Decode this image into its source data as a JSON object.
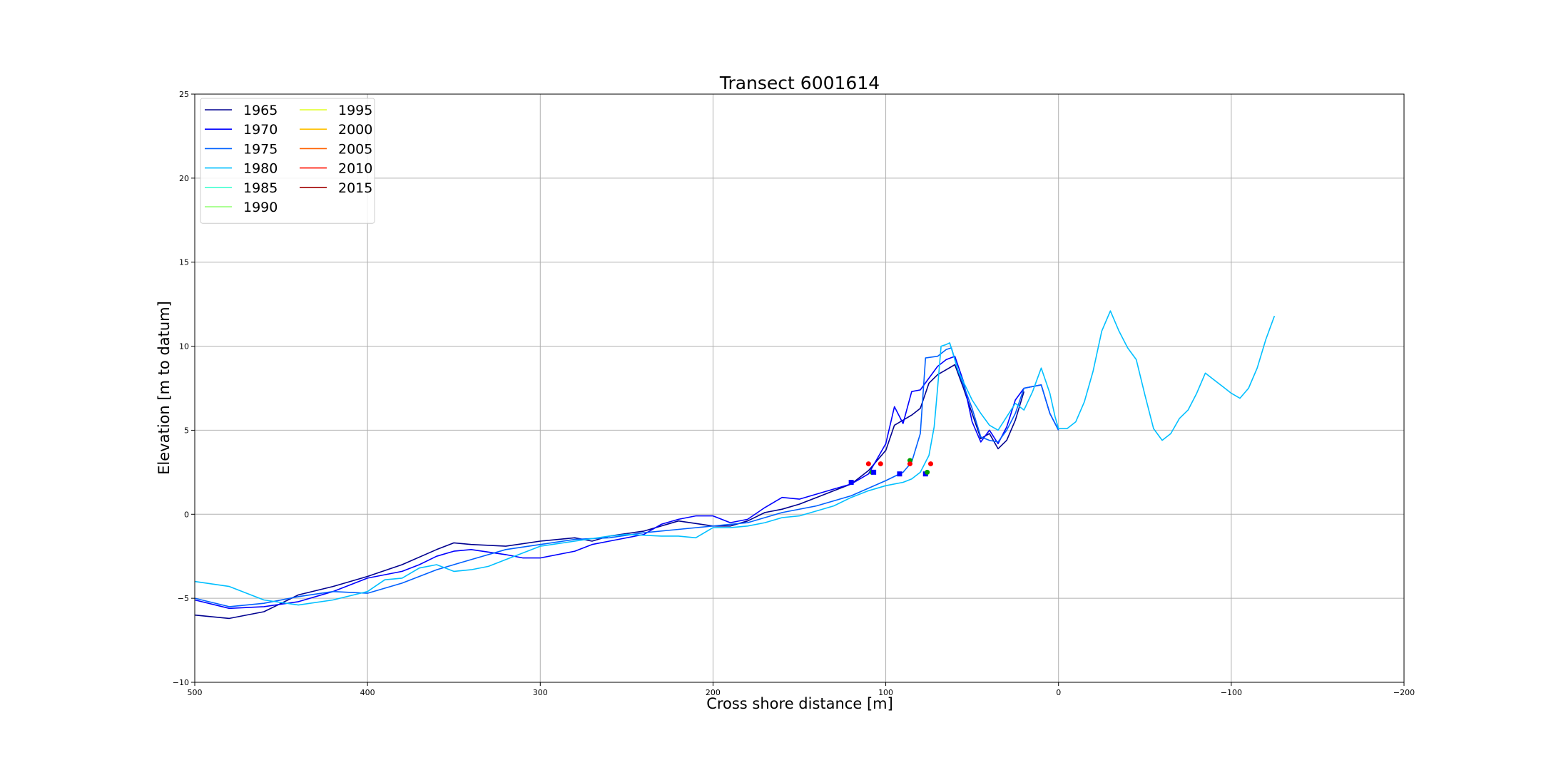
{
  "chart_data": {
    "type": "line",
    "title": "Transect 6001614",
    "xlabel": "Cross shore distance [m]",
    "ylabel": "Elevation [m to datum]",
    "xlim": [
      500,
      -200
    ],
    "ylim": [
      -10,
      25
    ],
    "x_ticks": [
      500,
      400,
      300,
      200,
      100,
      0,
      -100,
      -200
    ],
    "x_tick_labels": [
      "500",
      "400",
      "300",
      "200",
      "100",
      "0",
      "−100",
      "−200"
    ],
    "y_ticks": [
      -10,
      -5,
      0,
      5,
      10,
      15,
      20,
      25
    ],
    "y_tick_labels": [
      "−10",
      "−5",
      "0",
      "5",
      "10",
      "15",
      "20",
      "25"
    ],
    "grid": true,
    "legend_position": "top-left",
    "legend": [
      {
        "label": "1965",
        "color": "#00008f"
      },
      {
        "label": "1970",
        "color": "#0000ff"
      },
      {
        "label": "1975",
        "color": "#0060ff"
      },
      {
        "label": "1980",
        "color": "#00bfff"
      },
      {
        "label": "1985",
        "color": "#40ffd0"
      },
      {
        "label": "1990",
        "color": "#90ff70"
      },
      {
        "label": "1995",
        "color": "#e0ff20"
      },
      {
        "label": "2000",
        "color": "#ffc000"
      },
      {
        "label": "2005",
        "color": "#ff6000"
      },
      {
        "label": "2010",
        "color": "#ff1000"
      },
      {
        "label": "2015",
        "color": "#9f0000"
      }
    ],
    "series": [
      {
        "name": "1965",
        "color": "#00008f",
        "points": [
          [
            500,
            -6.0
          ],
          [
            480,
            -6.2
          ],
          [
            460,
            -5.8
          ],
          [
            440,
            -4.8
          ],
          [
            420,
            -4.3
          ],
          [
            400,
            -3.7
          ],
          [
            380,
            -3.0
          ],
          [
            360,
            -2.1
          ],
          [
            350,
            -1.7
          ],
          [
            340,
            -1.8
          ],
          [
            320,
            -1.9
          ],
          [
            300,
            -1.6
          ],
          [
            280,
            -1.4
          ],
          [
            270,
            -1.6
          ],
          [
            260,
            -1.3
          ],
          [
            240,
            -1.0
          ],
          [
            220,
            -0.4
          ],
          [
            200,
            -0.7
          ],
          [
            190,
            -0.7
          ],
          [
            180,
            -0.4
          ],
          [
            170,
            0.1
          ],
          [
            160,
            0.3
          ],
          [
            150,
            0.6
          ],
          [
            140,
            1.0
          ],
          [
            130,
            1.4
          ],
          [
            120,
            1.8
          ],
          [
            110,
            2.6
          ],
          [
            100,
            3.8
          ],
          [
            95,
            5.3
          ],
          [
            90,
            5.6
          ],
          [
            85,
            5.9
          ],
          [
            80,
            6.3
          ],
          [
            75,
            7.8
          ],
          [
            70,
            8.3
          ],
          [
            65,
            8.6
          ],
          [
            60,
            8.9
          ],
          [
            55,
            7.5
          ],
          [
            50,
            6.0
          ],
          [
            45,
            4.5
          ],
          [
            40,
            4.8
          ],
          [
            35,
            3.9
          ],
          [
            30,
            4.4
          ],
          [
            25,
            5.6
          ],
          [
            20,
            7.3
          ]
        ]
      },
      {
        "name": "1970",
        "color": "#0000ff",
        "points": [
          [
            500,
            -5.1
          ],
          [
            480,
            -5.6
          ],
          [
            460,
            -5.5
          ],
          [
            440,
            -5.2
          ],
          [
            420,
            -4.6
          ],
          [
            400,
            -3.8
          ],
          [
            380,
            -3.4
          ],
          [
            370,
            -3.0
          ],
          [
            360,
            -2.5
          ],
          [
            350,
            -2.2
          ],
          [
            340,
            -2.1
          ],
          [
            320,
            -2.4
          ],
          [
            310,
            -2.6
          ],
          [
            300,
            -2.6
          ],
          [
            280,
            -2.2
          ],
          [
            270,
            -1.8
          ],
          [
            260,
            -1.6
          ],
          [
            240,
            -1.2
          ],
          [
            230,
            -0.6
          ],
          [
            220,
            -0.3
          ],
          [
            210,
            -0.1
          ],
          [
            200,
            -0.1
          ],
          [
            190,
            -0.5
          ],
          [
            180,
            -0.3
          ],
          [
            170,
            0.4
          ],
          [
            160,
            1.0
          ],
          [
            150,
            0.9
          ],
          [
            140,
            1.2
          ],
          [
            130,
            1.5
          ],
          [
            120,
            1.8
          ],
          [
            110,
            2.4
          ],
          [
            100,
            4.2
          ],
          [
            95,
            6.4
          ],
          [
            90,
            5.4
          ],
          [
            85,
            7.3
          ],
          [
            80,
            7.4
          ],
          [
            75,
            8.1
          ],
          [
            70,
            8.8
          ],
          [
            65,
            9.2
          ],
          [
            60,
            9.4
          ],
          [
            55,
            7.9
          ],
          [
            50,
            5.5
          ],
          [
            45,
            4.3
          ],
          [
            40,
            5.0
          ],
          [
            35,
            4.2
          ],
          [
            30,
            5.2
          ],
          [
            25,
            6.8
          ],
          [
            20,
            7.5
          ],
          [
            10,
            7.7
          ],
          [
            5,
            6.0
          ],
          [
            0,
            5.0
          ]
        ]
      },
      {
        "name": "1975",
        "color": "#0060ff",
        "points": [
          [
            500,
            -5.0
          ],
          [
            480,
            -5.5
          ],
          [
            460,
            -5.3
          ],
          [
            440,
            -4.9
          ],
          [
            420,
            -4.6
          ],
          [
            400,
            -4.7
          ],
          [
            380,
            -4.1
          ],
          [
            360,
            -3.3
          ],
          [
            340,
            -2.7
          ],
          [
            320,
            -2.1
          ],
          [
            300,
            -1.8
          ],
          [
            280,
            -1.5
          ],
          [
            260,
            -1.4
          ],
          [
            240,
            -1.1
          ],
          [
            220,
            -0.9
          ],
          [
            200,
            -0.7
          ],
          [
            180,
            -0.5
          ],
          [
            160,
            0.1
          ],
          [
            140,
            0.5
          ],
          [
            120,
            1.1
          ],
          [
            100,
            2.0
          ],
          [
            90,
            2.5
          ],
          [
            85,
            3.1
          ],
          [
            80,
            4.8
          ],
          [
            77,
            9.3
          ],
          [
            70,
            9.4
          ],
          [
            65,
            9.8
          ],
          [
            62,
            9.9
          ],
          [
            58,
            8.5
          ],
          [
            50,
            6.3
          ],
          [
            45,
            4.6
          ],
          [
            40,
            4.4
          ],
          [
            35,
            4.3
          ],
          [
            30,
            5.0
          ],
          [
            25,
            6.0
          ],
          [
            20,
            7.5
          ],
          [
            10,
            7.7
          ],
          [
            5,
            6.0
          ],
          [
            0,
            5.0
          ]
        ]
      },
      {
        "name": "1980",
        "color": "#00bfff",
        "points": [
          [
            500,
            -4.0
          ],
          [
            480,
            -4.3
          ],
          [
            460,
            -5.1
          ],
          [
            440,
            -5.4
          ],
          [
            420,
            -5.1
          ],
          [
            400,
            -4.6
          ],
          [
            390,
            -3.9
          ],
          [
            380,
            -3.8
          ],
          [
            370,
            -3.2
          ],
          [
            360,
            -3.0
          ],
          [
            350,
            -3.4
          ],
          [
            340,
            -3.3
          ],
          [
            330,
            -3.1
          ],
          [
            320,
            -2.7
          ],
          [
            310,
            -2.3
          ],
          [
            300,
            -1.9
          ],
          [
            280,
            -1.6
          ],
          [
            260,
            -1.3
          ],
          [
            250,
            -1.2
          ],
          [
            230,
            -1.3
          ],
          [
            220,
            -1.3
          ],
          [
            210,
            -1.4
          ],
          [
            200,
            -0.8
          ],
          [
            190,
            -0.8
          ],
          [
            180,
            -0.7
          ],
          [
            170,
            -0.5
          ],
          [
            160,
            -0.2
          ],
          [
            150,
            -0.1
          ],
          [
            140,
            0.2
          ],
          [
            130,
            0.5
          ],
          [
            120,
            1.0
          ],
          [
            110,
            1.4
          ],
          [
            100,
            1.7
          ],
          [
            90,
            1.9
          ],
          [
            85,
            2.1
          ],
          [
            80,
            2.5
          ],
          [
            75,
            3.5
          ],
          [
            72,
            5.2
          ],
          [
            70,
            7.5
          ],
          [
            68,
            10.0
          ],
          [
            65,
            10.1
          ],
          [
            63,
            10.2
          ],
          [
            58,
            8.5
          ],
          [
            50,
            6.8
          ],
          [
            45,
            6.0
          ],
          [
            40,
            5.3
          ],
          [
            35,
            5.0
          ],
          [
            30,
            5.8
          ],
          [
            25,
            6.6
          ],
          [
            20,
            6.2
          ],
          [
            15,
            7.3
          ],
          [
            10,
            8.7
          ],
          [
            5,
            7.2
          ],
          [
            2,
            5.8
          ],
          [
            0,
            5.1
          ],
          [
            -5,
            5.1
          ],
          [
            -10,
            5.5
          ],
          [
            -15,
            6.7
          ],
          [
            -20,
            8.5
          ],
          [
            -25,
            10.9
          ],
          [
            -30,
            12.1
          ],
          [
            -35,
            10.9
          ],
          [
            -40,
            9.9
          ],
          [
            -45,
            9.2
          ],
          [
            -50,
            7.1
          ],
          [
            -55,
            5.1
          ],
          [
            -60,
            4.4
          ],
          [
            -65,
            4.8
          ],
          [
            -70,
            5.7
          ],
          [
            -75,
            6.2
          ],
          [
            -80,
            7.2
          ],
          [
            -85,
            8.4
          ],
          [
            -90,
            8.0
          ],
          [
            -95,
            7.6
          ],
          [
            -100,
            7.2
          ],
          [
            -105,
            6.9
          ],
          [
            -110,
            7.5
          ],
          [
            -115,
            8.7
          ],
          [
            -120,
            10.4
          ],
          [
            -125,
            11.8
          ]
        ]
      }
    ],
    "markers": [
      {
        "x": 120,
        "y": 1.9,
        "shape": "square",
        "color": "#0000ff"
      },
      {
        "x": 110,
        "y": 3.0,
        "shape": "circle",
        "color": "#ff0000"
      },
      {
        "x": 108,
        "y": 2.5,
        "shape": "circle",
        "color": "#00a000"
      },
      {
        "x": 107,
        "y": 2.5,
        "shape": "square",
        "color": "#0000ff"
      },
      {
        "x": 103,
        "y": 3.0,
        "shape": "circle",
        "color": "#ff0000"
      },
      {
        "x": 92,
        "y": 2.4,
        "shape": "square",
        "color": "#0000ff"
      },
      {
        "x": 86,
        "y": 3.2,
        "shape": "circle",
        "color": "#00a000"
      },
      {
        "x": 86,
        "y": 3.0,
        "shape": "circle",
        "color": "#ff0000"
      },
      {
        "x": 77,
        "y": 2.4,
        "shape": "square",
        "color": "#0000ff"
      },
      {
        "x": 76,
        "y": 2.5,
        "shape": "circle",
        "color": "#00a000"
      },
      {
        "x": 74,
        "y": 3.0,
        "shape": "circle",
        "color": "#ff0000"
      }
    ]
  }
}
